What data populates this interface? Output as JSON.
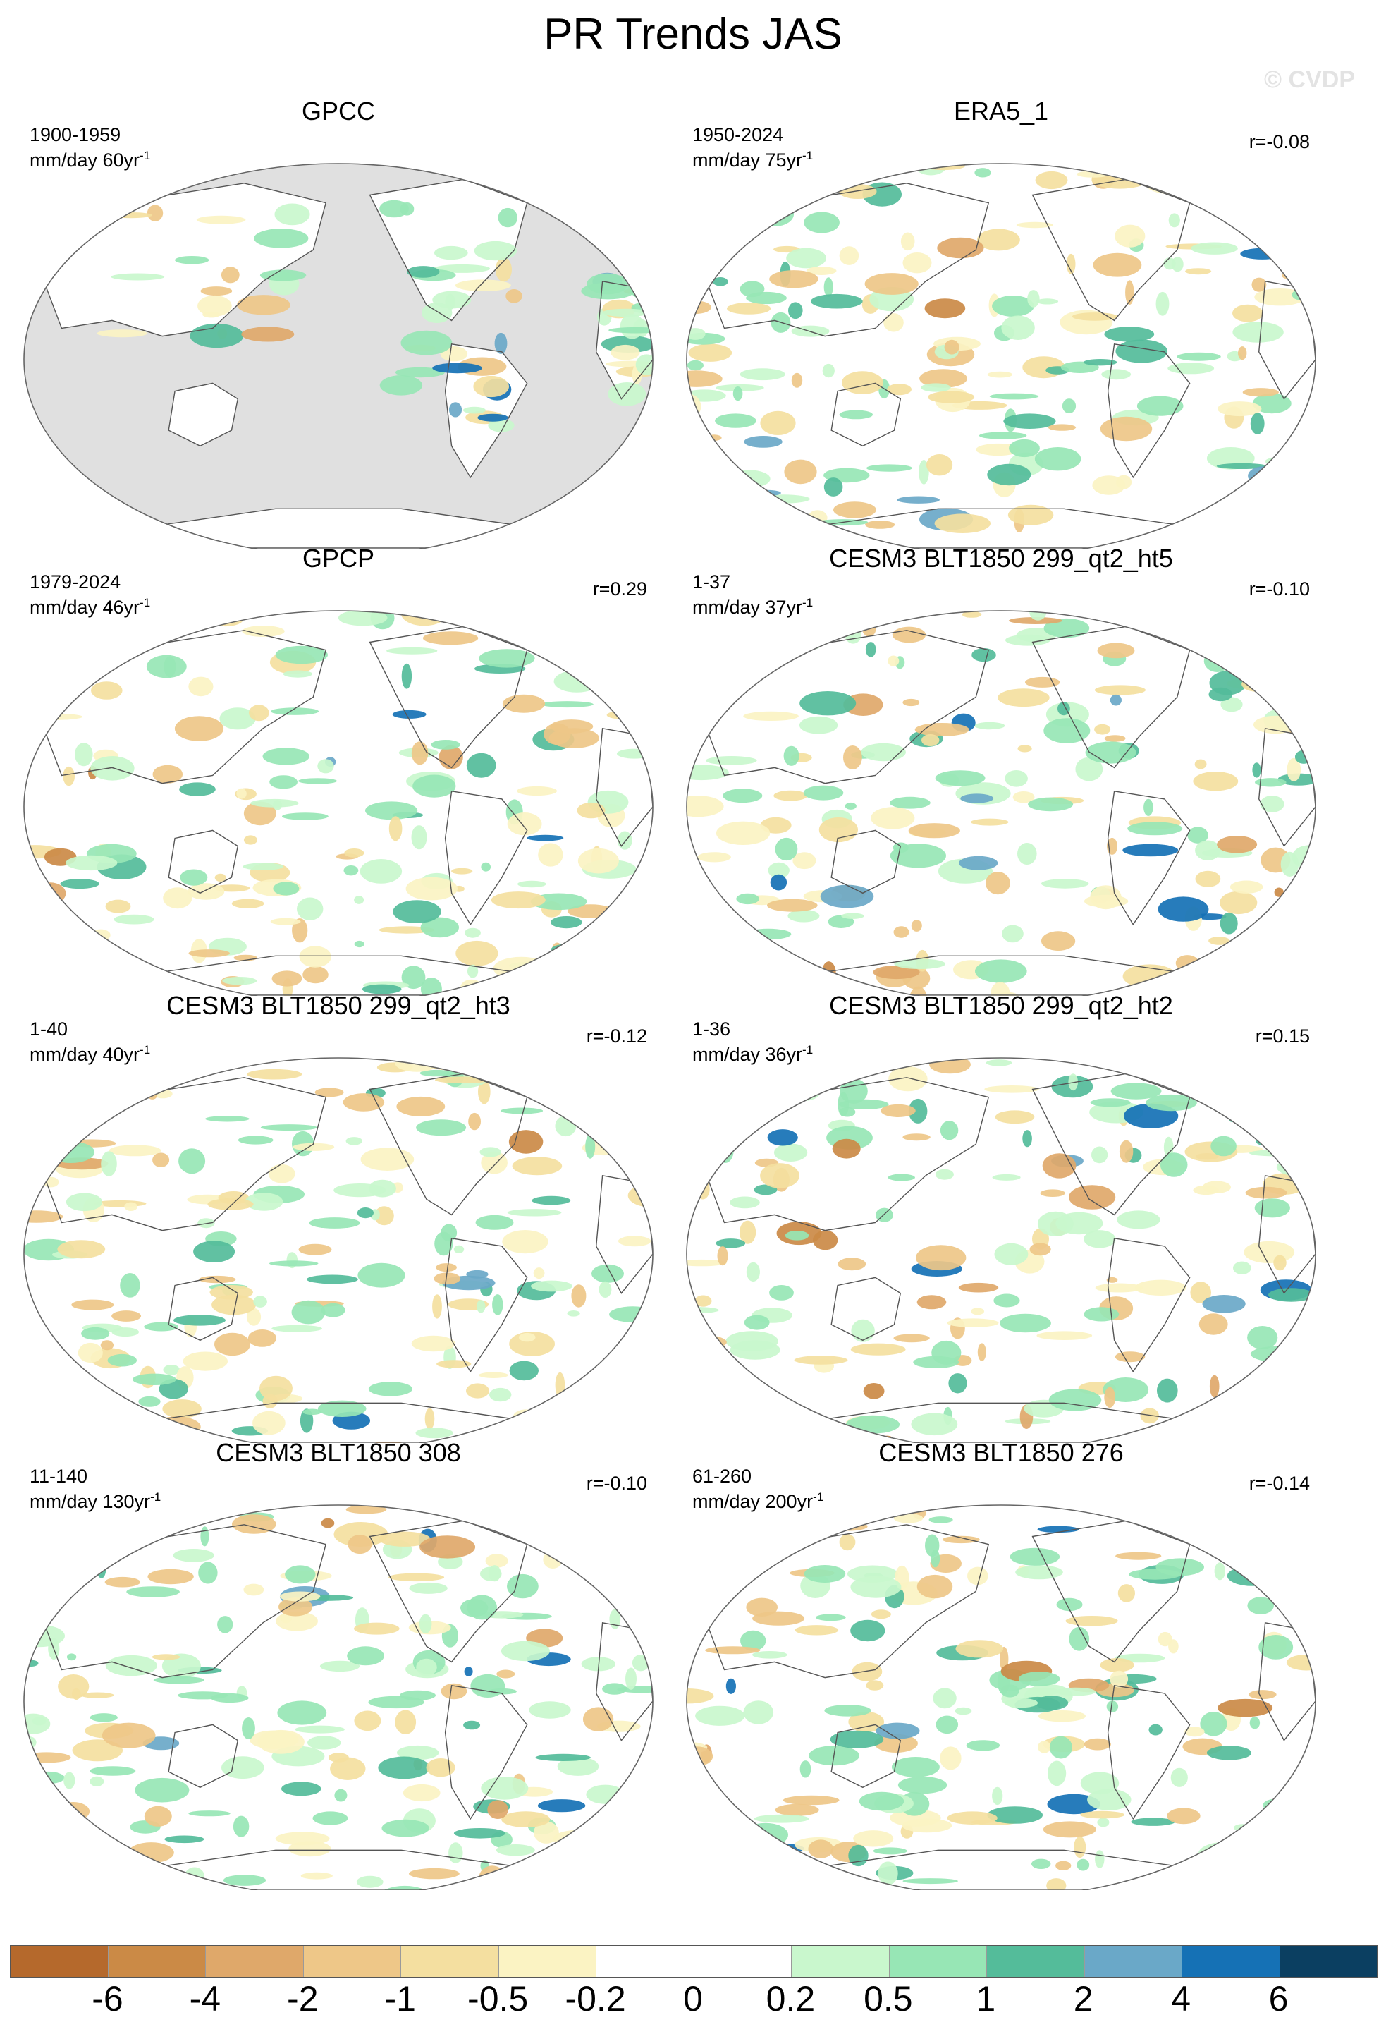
{
  "title": "PR Trends JAS",
  "watermark": "© CVDP",
  "colors": {
    "land_mask": "#e0e0e0",
    "coast": "#555555",
    "outline": "#666666"
  },
  "colorbar": {
    "colors": [
      "#b5692c",
      "#cb8a46",
      "#dfa86a",
      "#eec788",
      "#f4dfa0",
      "#fbf3c3",
      "#ffffff",
      "#ffffff",
      "#c9f7cd",
      "#97e6b5",
      "#54bc9a",
      "#6aa8c8",
      "#1571b5",
      "#0b3f61"
    ],
    "labels": [
      "-6",
      "-4",
      "-2",
      "-1",
      "-0.5",
      "-0.2",
      "0",
      "0.2",
      "0.5",
      "1",
      "2",
      "4",
      "6"
    ]
  },
  "panels": [
    {
      "title": "GPCC",
      "period": "1900-1959",
      "units": "mm/day 60yr",
      "units_sup": "-1",
      "corr": "",
      "landmask": true,
      "seed": 11
    },
    {
      "title": "ERA5_1",
      "period": "1950-2024",
      "units": "mm/day 75yr",
      "units_sup": "-1",
      "corr": "r=-0.08",
      "landmask": false,
      "seed": 23
    },
    {
      "title": "GPCP",
      "period": "1979-2024",
      "units": "mm/day 46yr",
      "units_sup": "-1",
      "corr": "r=0.29",
      "landmask": false,
      "seed": 37
    },
    {
      "title": "CESM3 BLT1850 299_qt2_ht5",
      "period": "1-37",
      "units": "mm/day 37yr",
      "units_sup": "-1",
      "corr": "r=-0.10",
      "landmask": false,
      "seed": 41
    },
    {
      "title": "CESM3 BLT1850 299_qt2_ht3",
      "period": "1-40",
      "units": "mm/day 40yr",
      "units_sup": "-1",
      "corr": "r=-0.12",
      "landmask": false,
      "seed": 53
    },
    {
      "title": "CESM3 BLT1850 299_qt2_ht2",
      "period": "1-36",
      "units": "mm/day 36yr",
      "units_sup": "-1",
      "corr": "r=0.15",
      "landmask": false,
      "seed": 67
    },
    {
      "title": "CESM3 BLT1850 308",
      "period": "11-140",
      "units": "mm/day 130yr",
      "units_sup": "-1",
      "corr": "r=-0.10",
      "landmask": false,
      "seed": 71
    },
    {
      "title": "CESM3 BLT1850 276",
      "period": "61-260",
      "units": "mm/day 200yr",
      "units_sup": "-1",
      "corr": "r=-0.14",
      "landmask": false,
      "seed": 89
    }
  ]
}
